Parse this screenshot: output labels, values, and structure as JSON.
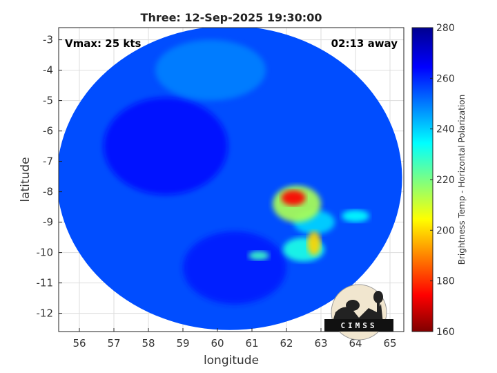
{
  "chart_data": {
    "type": "heatmap",
    "title": "Three: 12-Sep-2025 19:30:00",
    "annotations": {
      "left": "Vmax: 25 kts",
      "right": "02:13 away"
    },
    "xlabel": "longitude",
    "ylabel": "latitude",
    "xlim": [
      55.4,
      65.4
    ],
    "ylim": [
      -12.6,
      -2.6
    ],
    "xticks": [
      56,
      57,
      58,
      59,
      60,
      61,
      62,
      63,
      64,
      65
    ],
    "yticks": [
      -3,
      -4,
      -5,
      -6,
      -7,
      -8,
      -9,
      -10,
      -11,
      -12
    ],
    "grid": true,
    "colorbar": {
      "label": "Brightness Temp - Horizontal Polarization",
      "range": [
        160,
        280
      ],
      "ticks": [
        280,
        260,
        240,
        220,
        200,
        180,
        160
      ],
      "colormap": [
        "#7f0000",
        "#ff0000",
        "#ffff00",
        "#00ffff",
        "#0000ff",
        "#00008f"
      ]
    },
    "swath": {
      "center_lon": 60.35,
      "center_lat": -7.55,
      "radius_lon": 5.0,
      "radius_lat": 5.0,
      "background_value": 256
    },
    "features": [
      {
        "lon": 62.2,
        "lat": -8.2,
        "value": 175,
        "rx": 0.35,
        "ry": 0.25
      },
      {
        "lon": 62.3,
        "lat": -8.4,
        "value": 215,
        "rx": 0.7,
        "ry": 0.6
      },
      {
        "lon": 62.8,
        "lat": -9.7,
        "value": 200,
        "rx": 0.2,
        "ry": 0.4
      },
      {
        "lon": 62.5,
        "lat": -9.9,
        "value": 232,
        "rx": 0.6,
        "ry": 0.4
      },
      {
        "lon": 61.2,
        "lat": -10.1,
        "value": 228,
        "rx": 0.3,
        "ry": 0.15
      },
      {
        "lon": 64.0,
        "lat": -8.8,
        "value": 235,
        "rx": 0.4,
        "ry": 0.2
      },
      {
        "lon": 62.8,
        "lat": -9.0,
        "value": 240,
        "rx": 0.6,
        "ry": 0.4
      },
      {
        "lon": 58.5,
        "lat": -6.5,
        "value": 264,
        "rx": 1.8,
        "ry": 1.6
      },
      {
        "lon": 60.5,
        "lat": -10.5,
        "value": 262,
        "rx": 1.5,
        "ry": 1.2
      },
      {
        "lon": 59.8,
        "lat": -4.0,
        "value": 250,
        "rx": 1.6,
        "ry": 1.0
      }
    ],
    "logo": {
      "text": "CIMSS"
    }
  }
}
